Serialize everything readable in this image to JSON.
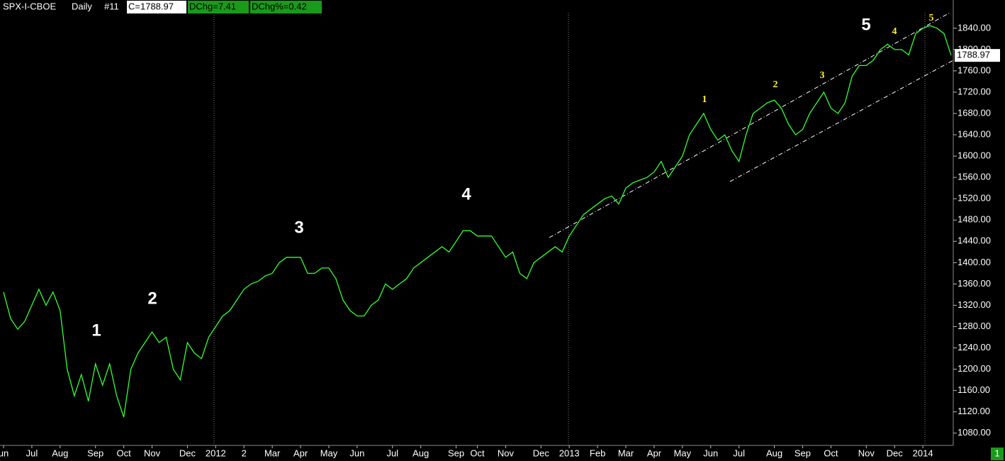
{
  "header": {
    "symbol": "SPX-I-CBOE",
    "period": "Daily",
    "window": "#11",
    "close": "C=1788.97",
    "change": "DChg=7.41",
    "change_pct": "DChg%=0.42"
  },
  "chart_data": {
    "type": "line",
    "color": "#33ff33",
    "categories": [
      "un",
      null,
      null,
      null,
      "Jul",
      null,
      null,
      null,
      "Aug",
      null,
      null,
      null,
      null,
      "Sep",
      null,
      null,
      null,
      "Oct",
      null,
      null,
      null,
      "Nov",
      null,
      null,
      null,
      null,
      "Dec",
      null,
      null,
      null,
      "2012",
      null,
      null,
      null,
      "2",
      null,
      null,
      null,
      "Mar",
      null,
      null,
      null,
      "Apr",
      null,
      null,
      null,
      "May",
      null,
      null,
      null,
      "Jun",
      null,
      null,
      null,
      null,
      "Jul",
      null,
      null,
      null,
      "Aug",
      null,
      null,
      null,
      null,
      "Sep",
      null,
      null,
      "Oct",
      null,
      null,
      null,
      "Nov",
      null,
      null,
      null,
      null,
      "Dec",
      null,
      null,
      null,
      "2013",
      null,
      null,
      null,
      "Feb",
      null,
      null,
      null,
      "Mar",
      null,
      null,
      null,
      "Apr",
      null,
      null,
      null,
      "May",
      null,
      null,
      null,
      "Jun",
      null,
      null,
      null,
      "Jul",
      null,
      null,
      null,
      null,
      "Aug",
      null,
      null,
      null,
      "Sep",
      null,
      null,
      null,
      "Oct",
      null,
      null,
      null,
      null,
      "Nov",
      null,
      null,
      null,
      "Dec",
      null,
      null,
      null,
      "2014",
      null,
      null,
      null,
      null
    ],
    "values": [
      1345,
      1295,
      1275,
      1290,
      1320,
      1350,
      1320,
      1345,
      1310,
      1200,
      1150,
      1190,
      1140,
      1210,
      1170,
      1210,
      1150,
      1110,
      1200,
      1230,
      1250,
      1270,
      1250,
      1260,
      1200,
      1180,
      1250,
      1230,
      1220,
      1260,
      1280,
      1300,
      1310,
      1330,
      1350,
      1360,
      1365,
      1375,
      1380,
      1400,
      1410,
      1410,
      1410,
      1380,
      1380,
      1390,
      1390,
      1370,
      1330,
      1310,
      1300,
      1300,
      1320,
      1330,
      1360,
      1350,
      1360,
      1370,
      1390,
      1400,
      1410,
      1420,
      1430,
      1420,
      1440,
      1460,
      1460,
      1450,
      1450,
      1450,
      1430,
      1410,
      1420,
      1380,
      1370,
      1400,
      1410,
      1420,
      1430,
      1420,
      1450,
      1470,
      1490,
      1500,
      1510,
      1520,
      1525,
      1510,
      1540,
      1550,
      1555,
      1560,
      1570,
      1590,
      1560,
      1580,
      1600,
      1640,
      1660,
      1680,
      1650,
      1630,
      1640,
      1610,
      1590,
      1640,
      1680,
      1690,
      1700,
      1705,
      1690,
      1660,
      1640,
      1650,
      1680,
      1700,
      1720,
      1690,
      1680,
      1700,
      1750,
      1770,
      1770,
      1780,
      1800,
      1810,
      1800,
      1800,
      1790,
      1830,
      1840,
      1845,
      1840,
      1830,
      1789
    ],
    "ylim": [
      1057,
      1893
    ],
    "yticks": [
      {
        "value": 1080,
        "label": "1080.00"
      },
      {
        "value": 1120,
        "label": "1120.00"
      },
      {
        "value": 1160,
        "label": "1160.00"
      },
      {
        "value": 1200,
        "label": "1200.00"
      },
      {
        "value": 1240,
        "label": "1240.00"
      },
      {
        "value": 1280,
        "label": "1280.00"
      },
      {
        "value": 1320,
        "label": "1320.00"
      },
      {
        "value": 1360,
        "label": "1360.00"
      },
      {
        "value": 1400,
        "label": "1400.00"
      },
      {
        "value": 1440,
        "label": "1440.00"
      },
      {
        "value": 1480,
        "label": "1480.00"
      },
      {
        "value": 1520,
        "label": "1520.00"
      },
      {
        "value": 1560,
        "label": "1560.00"
      },
      {
        "value": 1600,
        "label": "1600.00"
      },
      {
        "value": 1640,
        "label": "1640.00"
      },
      {
        "value": 1680,
        "label": "1680.00"
      },
      {
        "value": 1720,
        "label": "1720.00"
      },
      {
        "value": 1760,
        "label": "1760.00"
      },
      {
        "value": 1800,
        "label": "1800.00"
      },
      {
        "value": 1840,
        "label": "1840.00"
      }
    ],
    "last_price": 1788.97,
    "wave_labels_primary": [
      "1",
      "2",
      "3",
      "4",
      "5"
    ],
    "wave_labels_minor": [
      "1",
      "2",
      "3",
      "4",
      "5"
    ],
    "panel_number": "1"
  }
}
